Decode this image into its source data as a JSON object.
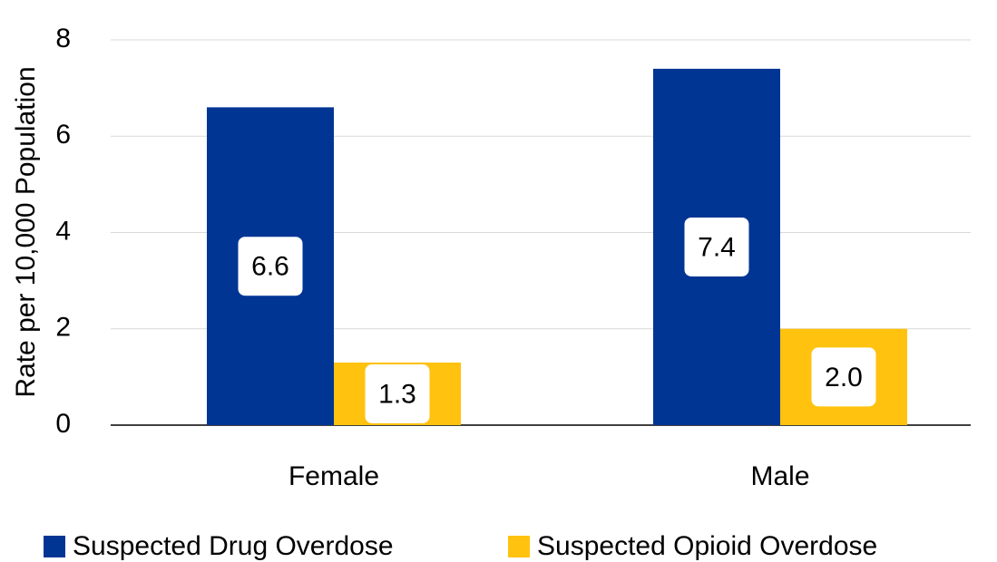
{
  "chart_data": {
    "type": "bar",
    "y_label": "Rate per 10,000 Population",
    "categories": [
      "Female",
      "Male"
    ],
    "series": [
      {
        "name": "Suspected Drug Overdose",
        "color": "#003594",
        "values": [
          6.6,
          7.4
        ],
        "value_labels": [
          "6.6",
          "7.4"
        ]
      },
      {
        "name": "Suspected Opioid Overdose",
        "color": "#ffc20e",
        "values": [
          1.3,
          2
        ],
        "value_labels": [
          "1.3",
          "2.0"
        ]
      }
    ],
    "ylim": [
      0,
      8
    ],
    "yticks": [
      0,
      2,
      4,
      6,
      8
    ],
    "grid": true,
    "legend": "bottom"
  }
}
